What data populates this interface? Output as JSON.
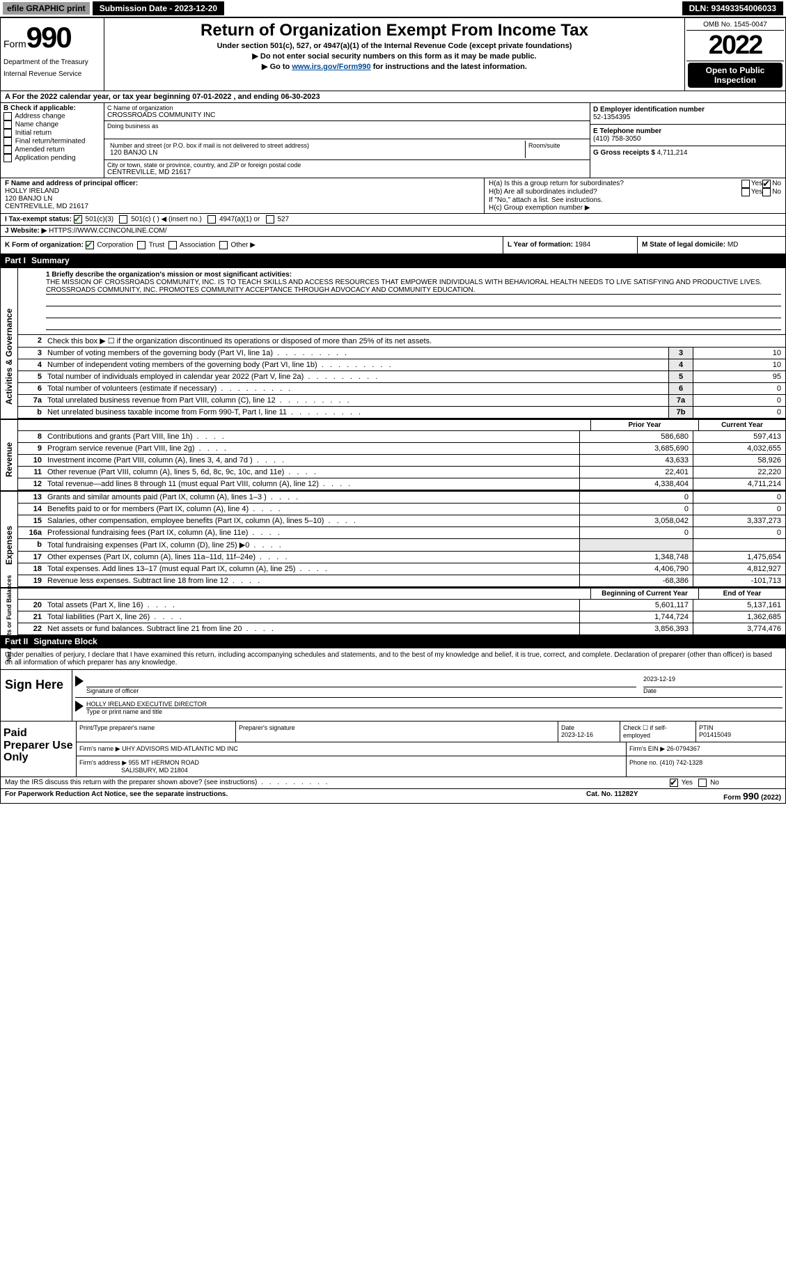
{
  "topbar": {
    "efile": "efile GRAPHIC print",
    "submission_label": "Submission Date - 2023-12-20",
    "dln": "DLN: 93493354006033"
  },
  "header": {
    "form_prefix": "Form",
    "form_number": "990",
    "title": "Return of Organization Exempt From Income Tax",
    "subtitle1": "Under section 501(c), 527, or 4947(a)(1) of the Internal Revenue Code (except private foundations)",
    "subtitle2": "▶ Do not enter social security numbers on this form as it may be made public.",
    "subtitle3_pre": "▶ Go to ",
    "subtitle3_link": "www.irs.gov/Form990",
    "subtitle3_post": " for instructions and the latest information.",
    "dept": "Department of the Treasury",
    "irs": "Internal Revenue Service",
    "omb": "OMB No. 1545-0047",
    "year": "2022",
    "open_public": "Open to Public Inspection"
  },
  "line_a": "A For the 2022 calendar year, or tax year beginning 07-01-2022    , and ending 06-30-2023",
  "section_b": {
    "label": "B Check if applicable:",
    "opts": [
      "Address change",
      "Name change",
      "Initial return",
      "Final return/terminated",
      "Amended return",
      "Application pending"
    ]
  },
  "section_c": {
    "label": "C Name of organization",
    "org_name": "CROSSROADS COMMUNITY INC",
    "dba_label": "Doing business as",
    "addr_label": "Number and street (or P.O. box if mail is not delivered to street address)",
    "room_label": "Room/suite",
    "addr": "120 BANJO LN",
    "city_label": "City or town, state or province, country, and ZIP or foreign postal code",
    "city": "CENTREVILLE, MD  21617"
  },
  "section_d": {
    "label": "D Employer identification number",
    "ein": "52-1354395",
    "e_label": "E Telephone number",
    "phone": "(410) 758-3050",
    "g_label": "G Gross receipts $",
    "gross": "4,711,214"
  },
  "section_f": {
    "label": "F Name and address of principal officer:",
    "name": "HOLLY IRELAND",
    "addr": "120 BANJO LN",
    "city": "CENTREVILLE, MD  21617"
  },
  "section_h": {
    "ha": "H(a)  Is this a group return for subordinates?",
    "hb": "H(b)  Are all subordinates included?",
    "hb_note": "If \"No,\" attach a list. See instructions.",
    "hc": "H(c)  Group exemption number ▶",
    "yes": "Yes",
    "no": "No"
  },
  "section_i": {
    "label": "I   Tax-exempt status:",
    "opt1": "501(c)(3)",
    "opt2": "501(c) (   ) ◀ (insert no.)",
    "opt3": "4947(a)(1) or",
    "opt4": "527"
  },
  "section_j": {
    "label": "J   Website: ▶",
    "url": "HTTPS://WWW.CCINCONLINE.COM/"
  },
  "section_k": {
    "label": "K Form of organization:",
    "opts": [
      "Corporation",
      "Trust",
      "Association",
      "Other ▶"
    ]
  },
  "section_l": {
    "label": "L Year of formation:",
    "val": "1984"
  },
  "section_m": {
    "label": "M State of legal domicile:",
    "val": "MD"
  },
  "part1": {
    "label": "Part I",
    "title": "Summary"
  },
  "mission": {
    "q": "1  Briefly describe the organization's mission or most significant activities:",
    "text": "THE MISSION OF CROSSROADS COMMUNITY, INC. IS TO TEACH SKILLS AND ACCESS RESOURCES THAT EMPOWER INDIVIDUALS WITH BEHAVIORAL HEALTH NEEDS TO LIVE SATISFYING AND PRODUCTIVE LIVES. CROSSROADS COMMUNITY, INC. PROMOTES COMMUNITY ACCEPTANCE THROUGH ADVOCACY AND COMMUNITY EDUCATION."
  },
  "side_labels": {
    "gov": "Activities & Governance",
    "rev": "Revenue",
    "exp": "Expenses",
    "net": "Net Assets or Fund Balances"
  },
  "lines_gov": [
    {
      "n": "2",
      "d": "Check this box ▶ ☐  if the organization discontinued its operations or disposed of more than 25% of its net assets."
    },
    {
      "n": "3",
      "d": "Number of voting members of the governing body (Part VI, line 1a)",
      "box": "3",
      "v": "10"
    },
    {
      "n": "4",
      "d": "Number of independent voting members of the governing body (Part VI, line 1b)",
      "box": "4",
      "v": "10"
    },
    {
      "n": "5",
      "d": "Total number of individuals employed in calendar year 2022 (Part V, line 2a)",
      "box": "5",
      "v": "95"
    },
    {
      "n": "6",
      "d": "Total number of volunteers (estimate if necessary)",
      "box": "6",
      "v": "0"
    },
    {
      "n": "7a",
      "d": "Total unrelated business revenue from Part VIII, column (C), line 12",
      "box": "7a",
      "v": "0"
    },
    {
      "n": "b",
      "d": "Net unrelated business taxable income from Form 990-T, Part I, line 11",
      "box": "7b",
      "v": "0"
    }
  ],
  "col_headers": {
    "prior": "Prior Year",
    "current": "Current Year"
  },
  "lines_rev": [
    {
      "n": "8",
      "d": "Contributions and grants (Part VIII, line 1h)",
      "p": "586,680",
      "c": "597,413"
    },
    {
      "n": "9",
      "d": "Program service revenue (Part VIII, line 2g)",
      "p": "3,685,690",
      "c": "4,032,655"
    },
    {
      "n": "10",
      "d": "Investment income (Part VIII, column (A), lines 3, 4, and 7d )",
      "p": "43,633",
      "c": "58,926"
    },
    {
      "n": "11",
      "d": "Other revenue (Part VIII, column (A), lines 5, 6d, 8c, 9c, 10c, and 11e)",
      "p": "22,401",
      "c": "22,220"
    },
    {
      "n": "12",
      "d": "Total revenue—add lines 8 through 11 (must equal Part VIII, column (A), line 12)",
      "p": "4,338,404",
      "c": "4,711,214"
    }
  ],
  "lines_exp": [
    {
      "n": "13",
      "d": "Grants and similar amounts paid (Part IX, column (A), lines 1–3 )",
      "p": "0",
      "c": "0"
    },
    {
      "n": "14",
      "d": "Benefits paid to or for members (Part IX, column (A), line 4)",
      "p": "0",
      "c": "0"
    },
    {
      "n": "15",
      "d": "Salaries, other compensation, employee benefits (Part IX, column (A), lines 5–10)",
      "p": "3,058,042",
      "c": "3,337,273"
    },
    {
      "n": "16a",
      "d": "Professional fundraising fees (Part IX, column (A), line 11e)",
      "p": "0",
      "c": "0"
    },
    {
      "n": "b",
      "d": "Total fundraising expenses (Part IX, column (D), line 25) ▶0",
      "p": "",
      "c": ""
    },
    {
      "n": "17",
      "d": "Other expenses (Part IX, column (A), lines 11a–11d, 11f–24e)",
      "p": "1,348,748",
      "c": "1,475,654"
    },
    {
      "n": "18",
      "d": "Total expenses. Add lines 13–17 (must equal Part IX, column (A), line 25)",
      "p": "4,406,790",
      "c": "4,812,927"
    },
    {
      "n": "19",
      "d": "Revenue less expenses. Subtract line 18 from line 12",
      "p": "-68,386",
      "c": "-101,713"
    }
  ],
  "col_headers2": {
    "beg": "Beginning of Current Year",
    "end": "End of Year"
  },
  "lines_net": [
    {
      "n": "20",
      "d": "Total assets (Part X, line 16)",
      "p": "5,601,117",
      "c": "5,137,161"
    },
    {
      "n": "21",
      "d": "Total liabilities (Part X, line 26)",
      "p": "1,744,724",
      "c": "1,362,685"
    },
    {
      "n": "22",
      "d": "Net assets or fund balances. Subtract line 21 from line 20",
      "p": "3,856,393",
      "c": "3,774,476"
    }
  ],
  "part2": {
    "label": "Part II",
    "title": "Signature Block"
  },
  "sig": {
    "declaration": "Under penalties of perjury, I declare that I have examined this return, including accompanying schedules and statements, and to the best of my knowledge and belief, it is true, correct, and complete. Declaration of preparer (other than officer) is based on all information of which preparer has any knowledge.",
    "sign_here": "Sign Here",
    "sig_officer": "Signature of officer",
    "date": "Date",
    "date_val": "2023-12-19",
    "name_title": "HOLLY IRELAND  EXECUTIVE DIRECTOR",
    "type_label": "Type or print name and title"
  },
  "prep": {
    "label": "Paid Preparer Use Only",
    "h1": "Print/Type preparer's name",
    "h2": "Preparer's signature",
    "h3": "Date",
    "h3v": "2023-12-16",
    "h4": "Check ☐ if self-employed",
    "h5": "PTIN",
    "h5v": "P01415049",
    "firm_label": "Firm's name    ▶",
    "firm": "UHY ADVISORS MID-ATLANTIC MD INC",
    "ein_label": "Firm's EIN ▶",
    "ein": "26-0794367",
    "addr_label": "Firm's address ▶",
    "addr": "955 MT HERMON ROAD",
    "addr2": "SALISBURY, MD  21804",
    "phone_label": "Phone no.",
    "phone": "(410) 742-1328"
  },
  "discuss": {
    "q": "May the IRS discuss this return with the preparer shown above? (see instructions)",
    "yes": "Yes",
    "no": "No"
  },
  "footer": {
    "left": "For Paperwork Reduction Act Notice, see the separate instructions.",
    "mid": "Cat. No. 11282Y",
    "right_pre": "Form ",
    "right_form": "990",
    "right_post": " (2022)"
  }
}
